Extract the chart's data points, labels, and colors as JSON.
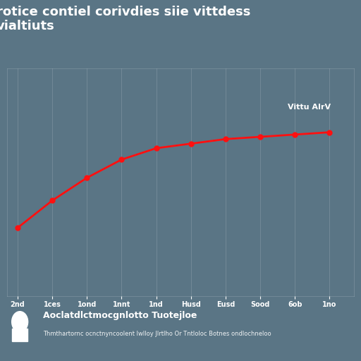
{
  "title": "rotice contiel corivdies siie vittdess\nvialtiuts",
  "background_color": "#5a7585",
  "line_color": "#ff1010",
  "grid_color": "#ffffff",
  "text_color": "#ffffff",
  "x_labels": [
    "2nd",
    "1ces",
    "1ond",
    "1nnt",
    "1nd",
    "Husd",
    "Eusd",
    "Sood",
    "6ob",
    "1no"
  ],
  "y_right_label": "Vittu AIrV",
  "x_values": [
    0,
    1,
    2,
    3,
    4,
    5,
    6,
    7,
    8,
    9
  ],
  "y_values": [
    0.3,
    0.42,
    0.52,
    0.6,
    0.65,
    0.67,
    0.69,
    0.7,
    0.71,
    0.72
  ],
  "legend_title": "Aoclatdlctmocgnlotto Tuotejloe",
  "legend_subtitle": "Thmthartornc ocnctnyncoolent lwlloy Jlrtlho Or Tntloloc Botnes ondlochneloo",
  "ylim": [
    0.0,
    1.0
  ],
  "xlim": [
    -0.3,
    9.7
  ],
  "marker_size": 5,
  "line_width": 2.0
}
